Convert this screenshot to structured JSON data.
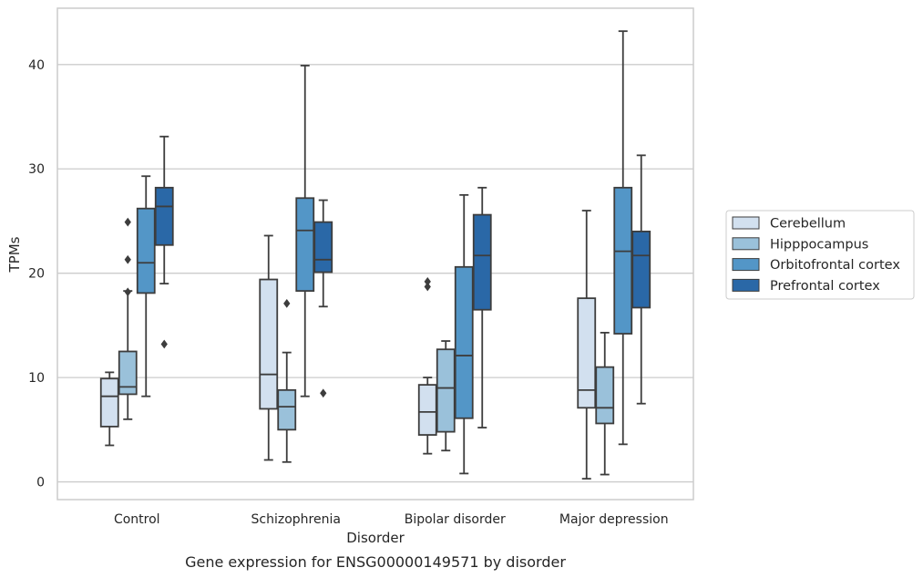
{
  "chart_data": {
    "type": "box",
    "caption": "Gene expression for ENSG00000149571 by disorder",
    "xlabel": "Disorder",
    "ylabel": "TPMs",
    "ylim": [
      -1.7,
      45.4
    ],
    "yticks": [
      0,
      10,
      20,
      30,
      40
    ],
    "grid": "horizontal",
    "legend_position": "right",
    "categories": [
      "Control",
      "Schizophrenia",
      "Bipolar disorder",
      "Major depression"
    ],
    "series": [
      {
        "name": "Cerebellum",
        "color": "#d2e0ef",
        "boxes": [
          {
            "whislo": 3.5,
            "q1": 5.3,
            "med": 8.2,
            "q3": 9.9,
            "whishi": 10.5,
            "fliers": []
          },
          {
            "whislo": 2.1,
            "q1": 7.0,
            "med": 10.3,
            "q3": 19.4,
            "whishi": 23.6,
            "fliers": []
          },
          {
            "whislo": 2.7,
            "q1": 4.5,
            "med": 6.7,
            "q3": 9.3,
            "whishi": 10.0,
            "fliers": [
              18.7,
              19.2
            ]
          },
          {
            "whislo": 0.3,
            "q1": 7.1,
            "med": 8.8,
            "q3": 17.6,
            "whishi": 26.0,
            "fliers": []
          }
        ]
      },
      {
        "name": "Hipppocampus",
        "color": "#9ac1da",
        "boxes": [
          {
            "whislo": 6.0,
            "q1": 8.4,
            "med": 9.1,
            "q3": 12.5,
            "whishi": 18.3,
            "fliers": [
              18.2,
              21.3,
              24.9
            ]
          },
          {
            "whislo": 1.9,
            "q1": 5.0,
            "med": 7.2,
            "q3": 8.8,
            "whishi": 12.4,
            "fliers": [
              17.1
            ]
          },
          {
            "whislo": 3.0,
            "q1": 4.8,
            "med": 9.0,
            "q3": 12.7,
            "whishi": 13.5,
            "fliers": []
          },
          {
            "whislo": 0.7,
            "q1": 5.6,
            "med": 7.1,
            "q3": 11.0,
            "whishi": 14.3,
            "fliers": []
          }
        ]
      },
      {
        "name": "Orbitofrontal cortex",
        "color": "#5396c7",
        "boxes": [
          {
            "whislo": 8.2,
            "q1": 18.1,
            "med": 21.0,
            "q3": 26.2,
            "whishi": 29.3,
            "fliers": []
          },
          {
            "whislo": 8.2,
            "q1": 18.3,
            "med": 24.1,
            "q3": 27.2,
            "whishi": 39.9,
            "fliers": []
          },
          {
            "whislo": 0.8,
            "q1": 6.1,
            "med": 12.1,
            "q3": 20.6,
            "whishi": 27.5,
            "fliers": []
          },
          {
            "whislo": 3.6,
            "q1": 14.2,
            "med": 22.1,
            "q3": 28.2,
            "whishi": 43.2,
            "fliers": []
          }
        ]
      },
      {
        "name": "Prefrontal cortex",
        "color": "#2a68a7",
        "boxes": [
          {
            "whislo": 19.0,
            "q1": 22.7,
            "med": 26.4,
            "q3": 28.2,
            "whishi": 33.1,
            "fliers": [
              13.2
            ]
          },
          {
            "whislo": 16.8,
            "q1": 20.1,
            "med": 21.3,
            "q3": 24.9,
            "whishi": 27.0,
            "fliers": [
              8.5
            ]
          },
          {
            "whislo": 5.2,
            "q1": 16.5,
            "med": 21.7,
            "q3": 25.6,
            "whishi": 28.2,
            "fliers": []
          },
          {
            "whislo": 7.5,
            "q1": 16.7,
            "med": 21.7,
            "q3": 24.0,
            "whishi": 31.3,
            "fliers": []
          }
        ]
      }
    ]
  }
}
